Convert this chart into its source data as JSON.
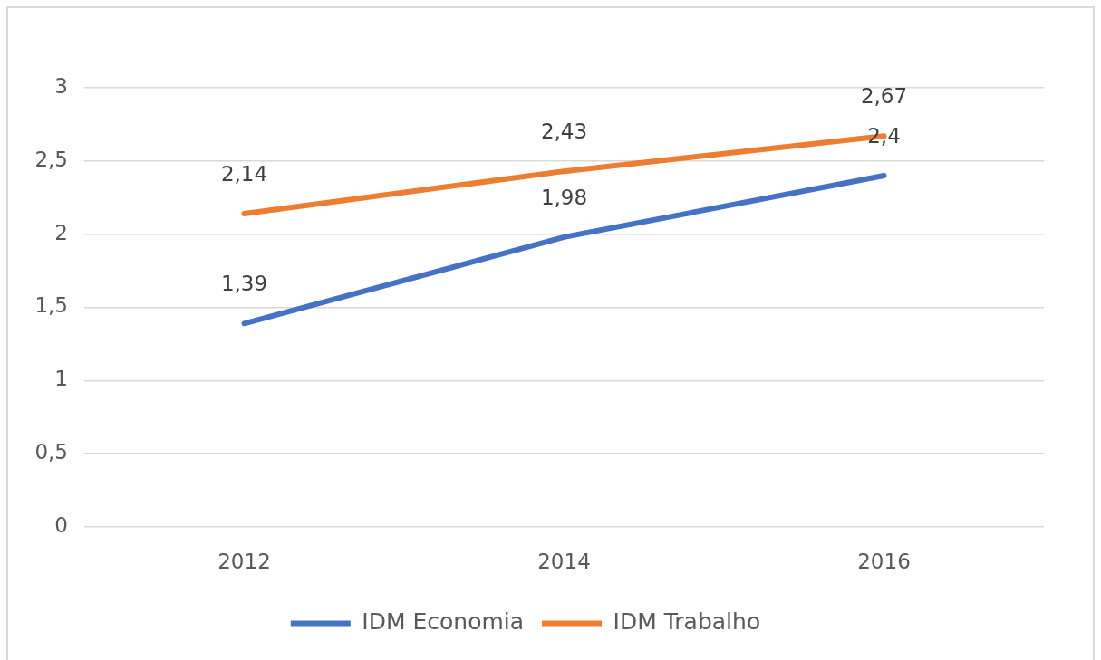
{
  "chart_data": {
    "type": "line",
    "categories": [
      "2012",
      "2014",
      "2016"
    ],
    "series": [
      {
        "name": "IDM Economia",
        "color": "#4472c4",
        "values": [
          1.39,
          1.98,
          2.4
        ],
        "value_labels": [
          "1,39",
          "1,98",
          "2,4"
        ]
      },
      {
        "name": "IDM Trabalho",
        "color": "#ed7d31",
        "values": [
          2.14,
          2.43,
          2.67
        ],
        "value_labels": [
          "2,14",
          "2,43",
          "2,67"
        ]
      }
    ],
    "ylim": [
      0,
      3
    ],
    "yticks": [
      0,
      {
        "value": 0.5,
        "label": "0,5"
      },
      1,
      {
        "value": 1.5,
        "label": "1,5"
      },
      2,
      {
        "value": 2.5,
        "label": "2,5"
      },
      3
    ],
    "grid": "y",
    "legend": "bottom",
    "marker": "none",
    "line_style": "solid"
  }
}
